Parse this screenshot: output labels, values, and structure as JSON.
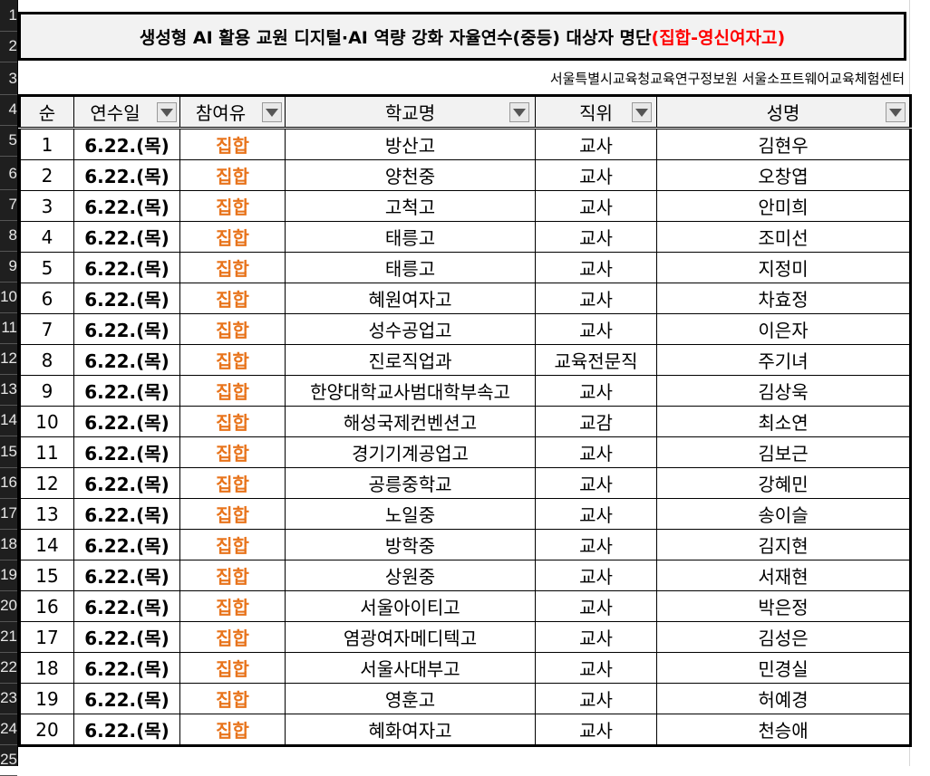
{
  "title": {
    "main": "생성형 AI 활용 교원 디지털·AI 역량 강화 자율연수(중등) 대상자 명단",
    "highlight": "(집합-영신여자고)",
    "highlight_color": "#ff0000"
  },
  "subtitle": "서울특별시교육청교육연구정보원 서울소프트웨어교육체험센터",
  "row_numbers": [
    "1",
    "2",
    "3",
    "4",
    "5",
    "6",
    "7",
    "8",
    "9",
    "10",
    "11",
    "12",
    "13",
    "14",
    "15",
    "16",
    "17",
    "18",
    "19",
    "20",
    "21",
    "22",
    "23",
    "24",
    "25"
  ],
  "columns": {
    "no": "순",
    "date": "연수일",
    "type": "참여유",
    "school": "학교명",
    "position": "직위",
    "name": "성명"
  },
  "accent_color": "#e8741c",
  "rows": [
    {
      "no": "1",
      "date": "6.22.(목)",
      "type": "집합",
      "school": "방산고",
      "position": "교사",
      "name": "김현우"
    },
    {
      "no": "2",
      "date": "6.22.(목)",
      "type": "집합",
      "school": "양천중",
      "position": "교사",
      "name": "오창엽"
    },
    {
      "no": "3",
      "date": "6.22.(목)",
      "type": "집합",
      "school": "고척고",
      "position": "교사",
      "name": "안미희"
    },
    {
      "no": "4",
      "date": "6.22.(목)",
      "type": "집합",
      "school": "태릉고",
      "position": "교사",
      "name": "조미선"
    },
    {
      "no": "5",
      "date": "6.22.(목)",
      "type": "집합",
      "school": "태릉고",
      "position": "교사",
      "name": "지정미"
    },
    {
      "no": "6",
      "date": "6.22.(목)",
      "type": "집합",
      "school": "혜원여자고",
      "position": "교사",
      "name": "차효정"
    },
    {
      "no": "7",
      "date": "6.22.(목)",
      "type": "집합",
      "school": "성수공업고",
      "position": "교사",
      "name": "이은자"
    },
    {
      "no": "8",
      "date": "6.22.(목)",
      "type": "집합",
      "school": "진로직업과",
      "position": "교육전문직",
      "name": "주기녀"
    },
    {
      "no": "9",
      "date": "6.22.(목)",
      "type": "집합",
      "school": "한양대학교사범대학부속고",
      "position": "교사",
      "name": "김상욱"
    },
    {
      "no": "10",
      "date": "6.22.(목)",
      "type": "집합",
      "school": "해성국제컨벤션고",
      "position": "교감",
      "name": "최소연"
    },
    {
      "no": "11",
      "date": "6.22.(목)",
      "type": "집합",
      "school": "경기기계공업고",
      "position": "교사",
      "name": "김보근"
    },
    {
      "no": "12",
      "date": "6.22.(목)",
      "type": "집합",
      "school": "공릉중학교",
      "position": "교사",
      "name": "강혜민"
    },
    {
      "no": "13",
      "date": "6.22.(목)",
      "type": "집합",
      "school": "노일중",
      "position": "교사",
      "name": "송이슬"
    },
    {
      "no": "14",
      "date": "6.22.(목)",
      "type": "집합",
      "school": "방학중",
      "position": "교사",
      "name": "김지현"
    },
    {
      "no": "15",
      "date": "6.22.(목)",
      "type": "집합",
      "school": "상원중",
      "position": "교사",
      "name": "서재현"
    },
    {
      "no": "16",
      "date": "6.22.(목)",
      "type": "집합",
      "school": "서울아이티고",
      "position": "교사",
      "name": "박은정"
    },
    {
      "no": "17",
      "date": "6.22.(목)",
      "type": "집합",
      "school": "염광여자메디텍고",
      "position": "교사",
      "name": "김성은"
    },
    {
      "no": "18",
      "date": "6.22.(목)",
      "type": "집합",
      "school": "서울사대부고",
      "position": "교사",
      "name": "민경실"
    },
    {
      "no": "19",
      "date": "6.22.(목)",
      "type": "집합",
      "school": "영훈고",
      "position": "교사",
      "name": "허예경"
    },
    {
      "no": "20",
      "date": "6.22.(목)",
      "type": "집합",
      "school": "혜화여자고",
      "position": "교사",
      "name": "천승애"
    }
  ]
}
